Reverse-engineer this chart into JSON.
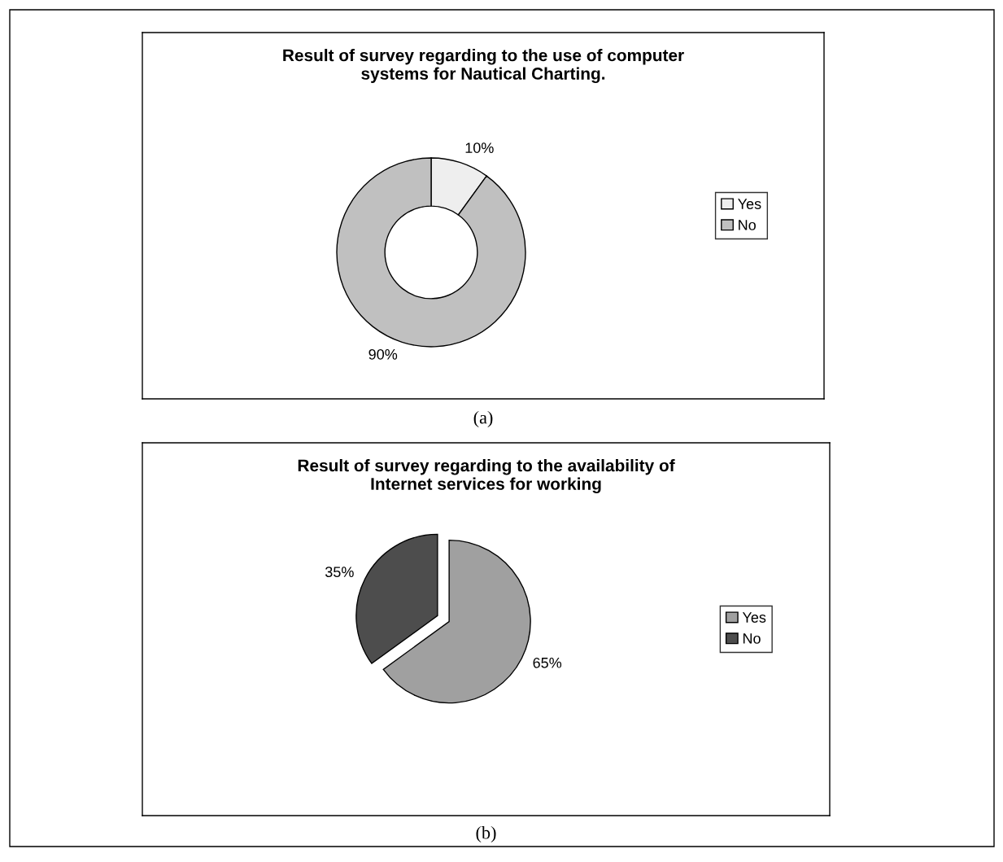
{
  "chart_data": [
    {
      "type": "donut",
      "title": "Result of survey regarding to the use of computer\nsystems for Nautical Charting.",
      "categories": [
        "Yes",
        "No"
      ],
      "values": [
        10,
        90
      ],
      "colors": [
        "#eeeeee",
        "#c0c0c0"
      ],
      "value_labels": [
        "10%",
        "90%"
      ],
      "legend": "right",
      "annotations": [
        "(a)"
      ]
    },
    {
      "type": "pie",
      "title": "Result of survey regarding to the availability of\nInternet services for working",
      "categories": [
        "Yes",
        "No"
      ],
      "values": [
        65,
        35
      ],
      "colors": [
        "#a0a0a0",
        "#4d4d4d"
      ],
      "value_labels": [
        "65%",
        "35%"
      ],
      "legend": "right",
      "annotations": [
        "(b)"
      ]
    }
  ]
}
